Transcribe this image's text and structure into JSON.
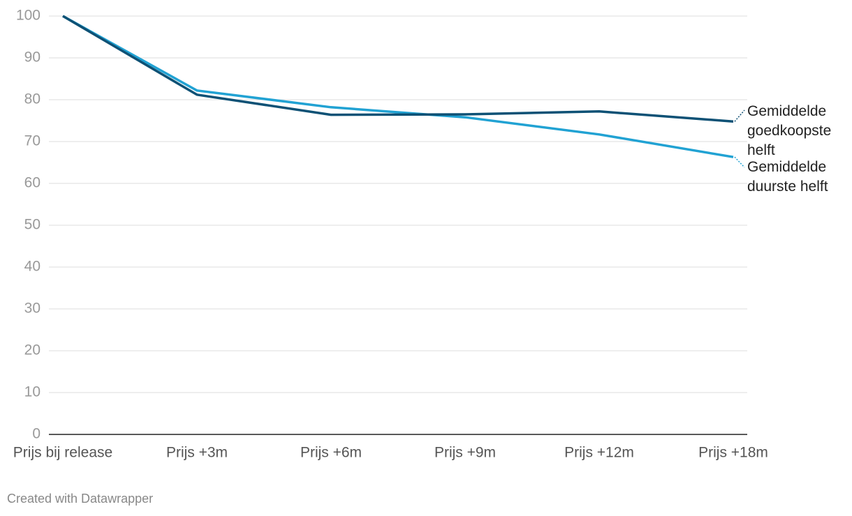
{
  "chart_data": {
    "type": "line",
    "categories": [
      "Prijs bij release",
      "Prijs +3m",
      "Prijs +6m",
      "Prijs +9m",
      "Prijs +12m",
      "Prijs +18m"
    ],
    "series": [
      {
        "name": "Gemiddelde goedkoopste helft",
        "color": "#0e5175",
        "values": [
          100,
          81.2,
          76.4,
          76.5,
          77.2,
          74.8
        ]
      },
      {
        "name": "Gemiddelde duurste helft",
        "color": "#21a2d3",
        "values": [
          100,
          82.2,
          78.2,
          75.8,
          71.7,
          66.3
        ]
      }
    ],
    "ylim": [
      0,
      100
    ],
    "yticks": [
      0,
      10,
      20,
      30,
      40,
      50,
      60,
      70,
      80,
      90,
      100
    ],
    "grid": true,
    "credit": "Created with Datawrapper"
  }
}
